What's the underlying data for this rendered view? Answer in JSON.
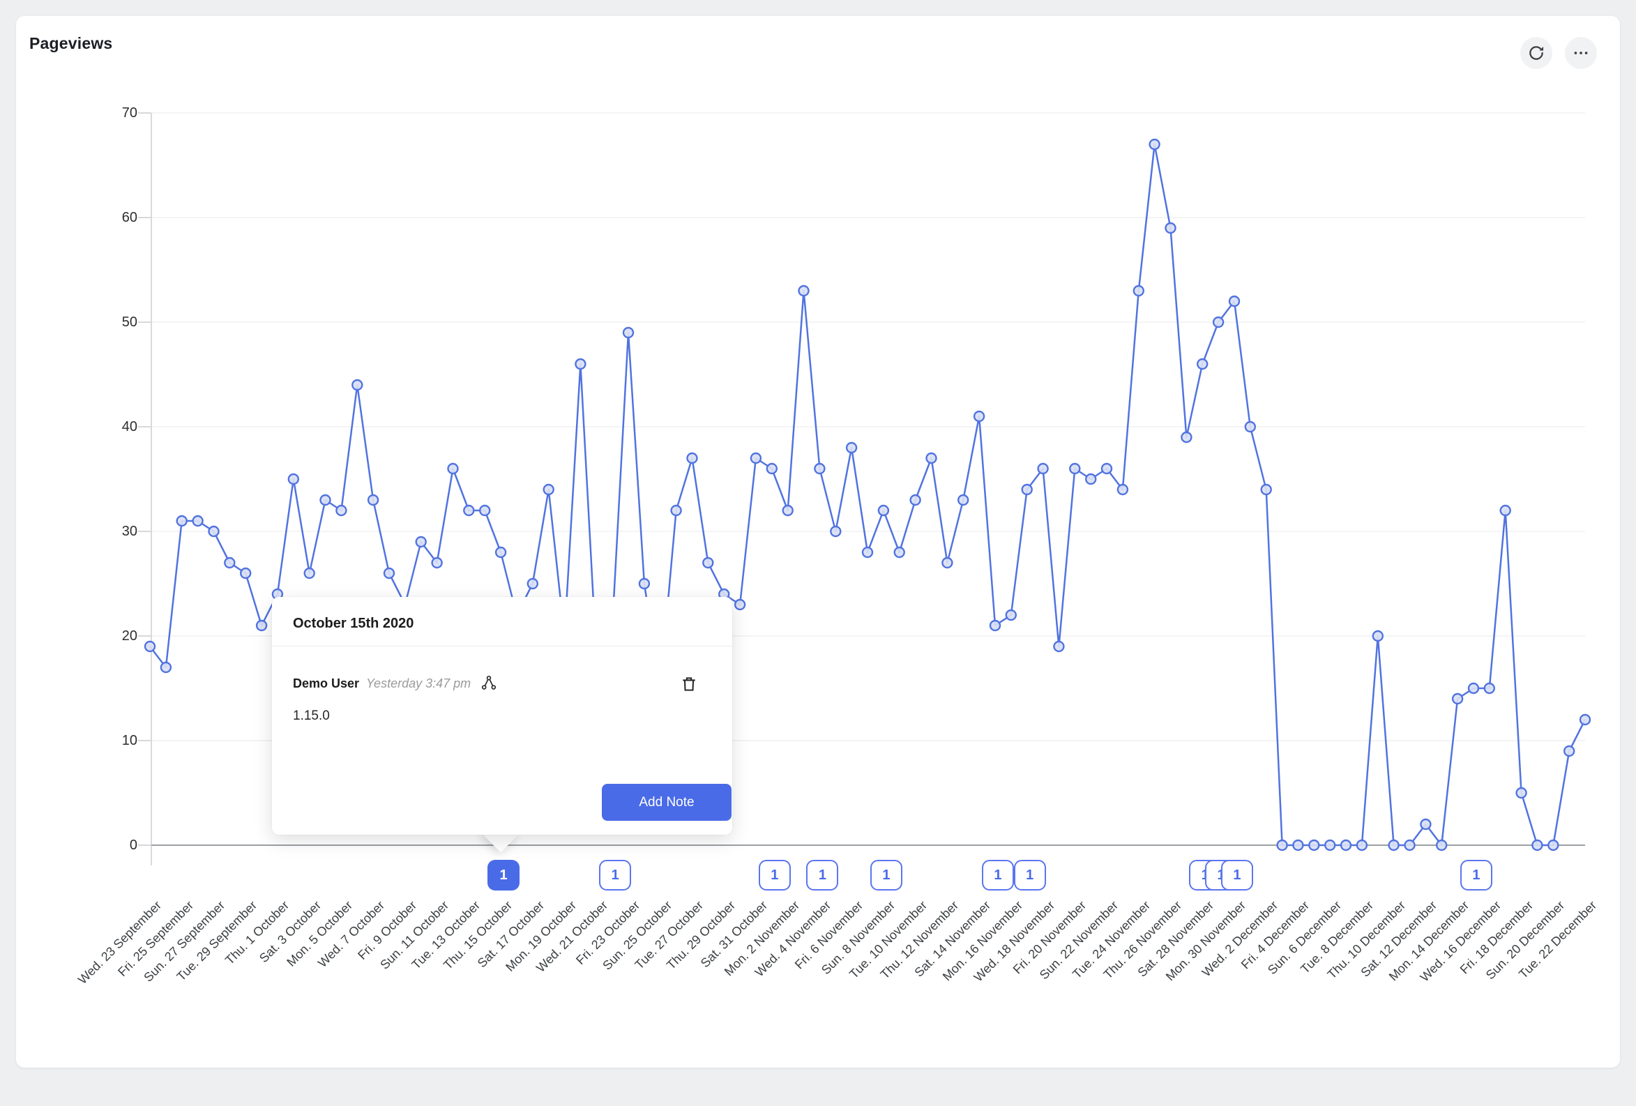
{
  "header": {
    "title": "Pageviews",
    "refresh_icon": "refresh-icon",
    "more_icon": "ellipsis-icon"
  },
  "colors": {
    "accent_blue": "#4a6be7",
    "line_blue": "#5173e0",
    "marker_fill": "#d9e0f4",
    "badge_border": "#5b76ee",
    "grid": "#e8e8e8",
    "axis": "#9aa0a4",
    "card_bg": "#ffffff",
    "page_bg": "#edeff1"
  },
  "chart_data": {
    "type": "line",
    "title": "Pageviews",
    "xlabel": "",
    "ylabel": "",
    "ylim": [
      0,
      70
    ],
    "yticks": [
      0,
      10,
      20,
      30,
      40,
      50,
      60,
      70
    ],
    "grid": true,
    "legend_position": "none",
    "x_tick_labels": [
      "Wed. 23 September",
      "Fri. 25 September",
      "Sun. 27 September",
      "Tue. 29 September",
      "Thu. 1 October",
      "Sat. 3 October",
      "Mon. 5 October",
      "Wed. 7 October",
      "Fri. 9 October",
      "Sun. 11 October",
      "Tue. 13 October",
      "Thu. 15 October",
      "Sat. 17 October",
      "Mon. 19 October",
      "Wed. 21 October",
      "Fri. 23 October",
      "Sun. 25 October",
      "Tue. 27 October",
      "Thu. 29 October",
      "Sat. 31 October",
      "Mon. 2 November",
      "Wed. 4 November",
      "Fri. 6 November",
      "Sun. 8 November",
      "Tue. 10 November",
      "Thu. 12 November",
      "Sat. 14 November",
      "Mon. 16 November",
      "Wed. 18 November",
      "Fri. 20 November",
      "Sun. 22 November",
      "Tue. 24 November",
      "Thu. 26 November",
      "Sat. 28 November",
      "Mon. 30 November",
      "Wed. 2 December",
      "Fri. 4 December",
      "Sun. 6 December",
      "Tue. 8 December",
      "Thu. 10 December",
      "Sat. 12 December",
      "Mon. 14 December",
      "Wed. 16 December",
      "Fri. 18 December",
      "Sun. 20 December",
      "Tue. 22 December"
    ],
    "values": [
      19,
      17,
      31,
      31,
      30,
      27,
      26,
      21,
      24,
      35,
      26,
      33,
      32,
      44,
      33,
      26,
      23,
      29,
      27,
      36,
      32,
      32,
      28,
      22,
      25,
      34,
      20,
      46,
      18,
      21,
      49,
      25,
      15,
      32,
      37,
      27,
      24,
      23,
      37,
      36,
      32,
      53,
      36,
      30,
      38,
      28,
      32,
      28,
      33,
      37,
      27,
      33,
      41,
      21,
      22,
      34,
      36,
      19,
      36,
      35,
      36,
      34,
      53,
      67,
      59,
      39,
      46,
      50,
      52,
      40,
      34,
      0,
      0,
      0,
      0,
      0,
      0,
      20,
      0,
      0,
      2,
      0,
      14,
      15,
      15,
      32,
      5,
      0,
      0,
      9,
      12
    ]
  },
  "notes": {
    "badge_label": "1",
    "items": [
      {
        "day": 22,
        "selected": true
      },
      {
        "day": 29,
        "selected": false
      },
      {
        "day": 39,
        "selected": false
      },
      {
        "day": 42,
        "selected": false
      },
      {
        "day": 46,
        "selected": false
      },
      {
        "day": 53,
        "selected": false
      },
      {
        "day": 55,
        "selected": false
      },
      {
        "day": 66,
        "selected": false
      },
      {
        "day": 67,
        "selected": false
      },
      {
        "day": 68,
        "selected": false
      },
      {
        "day": 83,
        "selected": false
      }
    ]
  },
  "popover": {
    "date_title": "October 15th 2020",
    "author": "Demo User",
    "timestamp": "Yesterday 3:47 pm",
    "note_text": "1.15.0",
    "add_button_label": "Add Note",
    "trash_icon": "trash-icon",
    "graph_icon": "node-graph-icon"
  }
}
